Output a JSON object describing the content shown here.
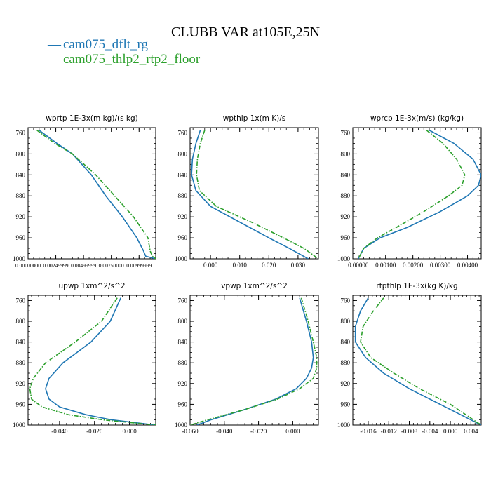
{
  "header": {
    "title": "CLUBB VAR at105E,25N"
  },
  "legend": {
    "items": [
      {
        "label": "cam075_dflt_rg",
        "color": "#1f77b4",
        "dash": "solid"
      },
      {
        "label": "cam075_thlp2_rtp2_floor",
        "color": "#2ca02c",
        "dash": "dashdot"
      }
    ]
  },
  "chart_data": [
    {
      "type": "line",
      "title": "wprtp  1E-3x(m kg)/(s kg)",
      "xlabel": "",
      "ylabel": "",
      "xlim": [
        0,
        0.0115
      ],
      "ylim": [
        1000,
        750
      ],
      "y_inverted": true,
      "xticks": [
        0.0,
        0.0025,
        0.005,
        0.0075,
        0.01
      ],
      "xtick_labels": [
        "0.00000000",
        "0.00249999",
        "0.00499999",
        "0.00750000",
        "0.00999999"
      ],
      "yticks": [
        760,
        800,
        840,
        880,
        920,
        960,
        1000
      ],
      "series": [
        {
          "name": "cam075_dflt_rg",
          "color": "#1f77b4",
          "dash": "solid",
          "y": [
            755,
            780,
            800,
            840,
            880,
            920,
            960,
            985,
            990,
            995,
            1000
          ],
          "x": [
            0.001,
            0.0026,
            0.004,
            0.0057,
            0.007,
            0.0085,
            0.0098,
            0.0104,
            0.0105,
            0.0106,
            0.0115
          ]
        },
        {
          "name": "cam075_thlp2_rtp2_floor",
          "color": "#2ca02c",
          "dash": "dashdot",
          "y": [
            755,
            780,
            800,
            840,
            880,
            920,
            960,
            985,
            990,
            995,
            1000
          ],
          "x": [
            0.0008,
            0.0024,
            0.004,
            0.0061,
            0.0078,
            0.0095,
            0.0108,
            0.011,
            0.0111,
            0.0112,
            0.0115
          ]
        }
      ]
    },
    {
      "type": "line",
      "title": "wpthlp  1x(m K)/s",
      "xlabel": "",
      "ylabel": "",
      "xlim": [
        -0.007,
        0.037
      ],
      "ylim": [
        1000,
        750
      ],
      "y_inverted": true,
      "xticks": [
        0.0,
        0.01,
        0.02,
        0.03
      ],
      "xtick_labels": [
        "0.000",
        "0.010",
        "0.020",
        "0.030"
      ],
      "yticks": [
        760,
        800,
        840,
        880,
        920,
        960,
        1000
      ],
      "series": [
        {
          "name": "cam075_dflt_rg",
          "color": "#1f77b4",
          "dash": "solid",
          "y": [
            755,
            780,
            810,
            840,
            870,
            900,
            930,
            960,
            980,
            1000
          ],
          "x": [
            -0.0035,
            -0.005,
            -0.0062,
            -0.0065,
            -0.005,
            0.0,
            0.01,
            0.02,
            0.027,
            0.0335
          ]
        },
        {
          "name": "cam075_thlp2_rtp2_floor",
          "color": "#2ca02c",
          "dash": "dashdot",
          "y": [
            755,
            780,
            810,
            840,
            870,
            900,
            930,
            960,
            980,
            1000
          ],
          "x": [
            -0.002,
            -0.0035,
            -0.0045,
            -0.0048,
            -0.0038,
            0.002,
            0.014,
            0.025,
            0.032,
            0.037
          ]
        }
      ]
    },
    {
      "type": "line",
      "title": "wprcp  1E-3x(m/s) (kg/kg)",
      "xlabel": "",
      "ylabel": "",
      "xlim": [
        -0.0002,
        0.0045
      ],
      "ylim": [
        1000,
        750
      ],
      "y_inverted": true,
      "xticks": [
        0.0,
        0.001,
        0.002,
        0.003,
        0.004
      ],
      "xtick_labels": [
        "0.00000",
        "0.00100",
        "0.00200",
        "0.00300",
        "0.00400"
      ],
      "yticks": [
        760,
        800,
        840,
        880,
        920,
        960,
        1000
      ],
      "series": [
        {
          "name": "cam075_dflt_rg",
          "color": "#1f77b4",
          "dash": "solid",
          "y": [
            755,
            780,
            810,
            840,
            860,
            880,
            910,
            940,
            960,
            980,
            1000
          ],
          "x": [
            0.0026,
            0.0035,
            0.0042,
            0.0045,
            0.0044,
            0.004,
            0.003,
            0.0018,
            0.0008,
            0.0002,
            0.0
          ]
        },
        {
          "name": "cam075_thlp2_rtp2_floor",
          "color": "#2ca02c",
          "dash": "dashdot",
          "y": [
            755,
            780,
            810,
            840,
            860,
            880,
            910,
            940,
            960,
            980,
            1000
          ],
          "x": [
            0.0025,
            0.0031,
            0.0036,
            0.0039,
            0.0038,
            0.0033,
            0.0024,
            0.0014,
            0.0007,
            0.0002,
            0.0
          ]
        }
      ]
    },
    {
      "type": "line",
      "title": "upwp  1xm^2/s^2",
      "xlabel": "",
      "ylabel": "",
      "xlim": [
        -0.058,
        0.015
      ],
      "ylim": [
        1000,
        750
      ],
      "y_inverted": true,
      "xticks": [
        -0.04,
        -0.02,
        0.0
      ],
      "xtick_labels": [
        "-0.040",
        "-0.020",
        "0.000"
      ],
      "yticks": [
        760,
        800,
        840,
        880,
        920,
        960,
        1000
      ],
      "series": [
        {
          "name": "cam075_dflt_rg",
          "color": "#1f77b4",
          "dash": "solid",
          "y": [
            755,
            800,
            840,
            880,
            910,
            930,
            950,
            965,
            980,
            990,
            1000
          ],
          "x": [
            -0.005,
            -0.011,
            -0.022,
            -0.038,
            -0.046,
            -0.048,
            -0.046,
            -0.04,
            -0.025,
            -0.01,
            0.015
          ]
        },
        {
          "name": "cam075_thlp2_rtp2_floor",
          "color": "#2ca02c",
          "dash": "dashdot",
          "y": [
            755,
            800,
            840,
            880,
            910,
            930,
            950,
            965,
            980,
            990,
            1000
          ],
          "x": [
            -0.007,
            -0.016,
            -0.031,
            -0.048,
            -0.055,
            -0.057,
            -0.056,
            -0.05,
            -0.035,
            -0.015,
            0.015
          ]
        }
      ]
    },
    {
      "type": "line",
      "title": "vpwp  1xm^2/s^2",
      "xlabel": "",
      "ylabel": "",
      "xlim": [
        -0.06,
        0.015
      ],
      "ylim": [
        1000,
        750
      ],
      "y_inverted": true,
      "xticks": [
        -0.06,
        -0.04,
        -0.02,
        0.0
      ],
      "xtick_labels": [
        "-0.060",
        "-0.040",
        "-0.020",
        "0.000"
      ],
      "yticks": [
        760,
        800,
        840,
        880,
        920,
        960,
        1000
      ],
      "series": [
        {
          "name": "cam075_dflt_rg",
          "color": "#1f77b4",
          "dash": "solid",
          "y": [
            755,
            800,
            840,
            870,
            890,
            910,
            930,
            950,
            970,
            990,
            1000
          ],
          "x": [
            0.004,
            0.008,
            0.011,
            0.012,
            0.011,
            0.008,
            0.002,
            -0.01,
            -0.028,
            -0.048,
            -0.056
          ]
        },
        {
          "name": "cam075_thlp2_rtp2_floor",
          "color": "#2ca02c",
          "dash": "dashdot",
          "y": [
            755,
            800,
            840,
            870,
            890,
            910,
            930,
            950,
            970,
            990,
            1000
          ],
          "x": [
            0.005,
            0.009,
            0.012,
            0.014,
            0.014,
            0.012,
            0.004,
            -0.009,
            -0.028,
            -0.05,
            -0.06
          ]
        }
      ]
    },
    {
      "type": "line",
      "title": "rtpthlp  1E-3x(kg K)/kg",
      "xlabel": "",
      "ylabel": "",
      "xlim": [
        -0.019,
        0.006
      ],
      "ylim": [
        1000,
        750
      ],
      "y_inverted": true,
      "xticks": [
        -0.016,
        -0.012,
        -0.008,
        -0.004,
        0.0,
        0.004
      ],
      "xtick_labels": [
        "-0.016",
        "-0.012",
        "-0.008",
        "-0.004",
        "0.000",
        "0.004"
      ],
      "yticks": [
        760,
        800,
        840,
        880,
        920,
        960,
        1000
      ],
      "series": [
        {
          "name": "cam075_dflt_rg",
          "color": "#1f77b4",
          "dash": "solid",
          "y": [
            755,
            780,
            810,
            840,
            870,
            900,
            930,
            960,
            980,
            1000
          ],
          "x": [
            -0.016,
            -0.0175,
            -0.0185,
            -0.0185,
            -0.0165,
            -0.013,
            -0.008,
            -0.002,
            0.002,
            0.006
          ]
        },
        {
          "name": "cam075_thlp2_rtp2_floor",
          "color": "#2ca02c",
          "dash": "dashdot",
          "y": [
            755,
            780,
            810,
            840,
            870,
            900,
            930,
            960,
            980,
            1000
          ],
          "x": [
            -0.013,
            -0.015,
            -0.017,
            -0.0175,
            -0.0155,
            -0.011,
            -0.006,
            0.0,
            0.003,
            0.006
          ]
        }
      ]
    }
  ]
}
